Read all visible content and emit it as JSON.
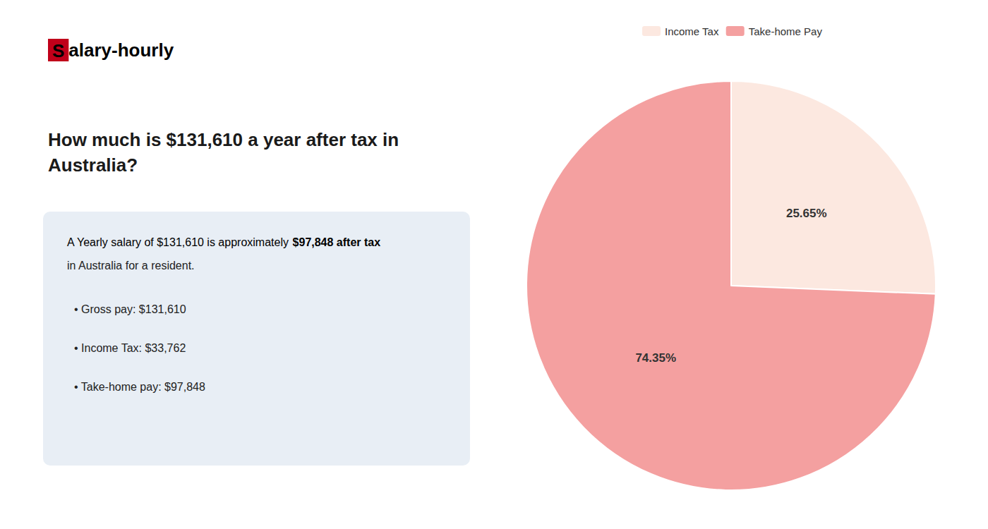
{
  "chart_data": {
    "type": "pie",
    "title": "How much is $131,610 a year after tax in\nAustralia?",
    "categories": [
      "Income Tax",
      "Take-home Pay"
    ],
    "values": [
      25.65,
      74.35
    ],
    "value_labels": [
      "25.65%",
      "74.35%"
    ],
    "colors": [
      "#fce8e0",
      "#f4a0a0"
    ],
    "data_labels": true,
    "legend": "top",
    "annotations": [
      {
        "text": "S",
        "color": "#c0001a"
      },
      {
        "text": "alary-hourly"
      },
      {
        "text": "A Yearly salary of $131,610 is approximately "
      },
      {
        "text": "$97,848 after tax",
        "color": "#c0001a"
      },
      {
        "text": "in Australia for a resident."
      },
      {
        "text": "• Gross pay: $131,610"
      },
      {
        "text": "• Income Tax: $33,762"
      },
      {
        "text": "• Take-home pay: $97,848"
      }
    ]
  }
}
